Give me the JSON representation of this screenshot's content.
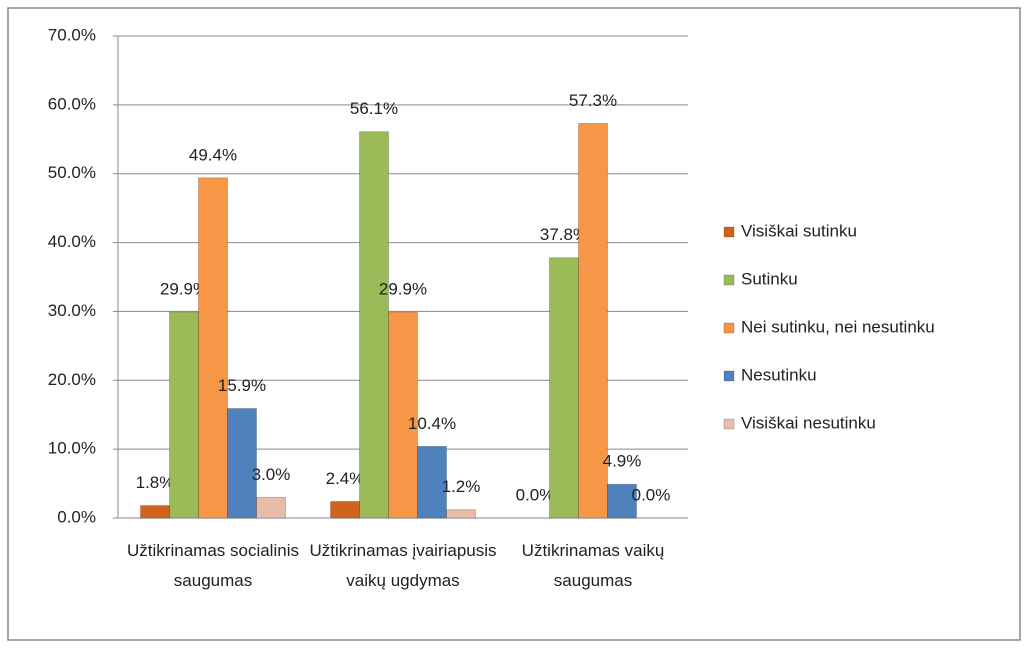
{
  "chart_data": {
    "type": "bar",
    "categories": [
      "Užtikrinamas socialinis saugumas",
      "Užtikrinamas įvairiapusis vaikų ugdymas",
      "Užtikrinamas vaikų saugumas"
    ],
    "series": [
      {
        "name": "Visiškai sutinku",
        "color": "#d0641f",
        "values": [
          1.8,
          2.4,
          0.0
        ],
        "value_labels": [
          "1.8%",
          "2.4%",
          "0.0%"
        ]
      },
      {
        "name": "Sutinku",
        "color": "#9bbb59",
        "values": [
          29.9,
          56.1,
          37.8
        ],
        "value_labels": [
          "29.9%",
          "56.1%",
          "37.8%"
        ]
      },
      {
        "name": "Nei sutinku, nei nesutinku",
        "color": "#f79646",
        "values": [
          49.4,
          29.9,
          57.3
        ],
        "value_labels": [
          "49.4%",
          "29.9%",
          "57.3%"
        ]
      },
      {
        "name": "Nesutinku",
        "color": "#4f81bd",
        "values": [
          15.9,
          10.4,
          4.9
        ],
        "value_labels": [
          "15.9%",
          "10.4%",
          "4.9%"
        ]
      },
      {
        "name": "Visiškai nesutinku",
        "color": "#e8bca8",
        "values": [
          3.0,
          1.2,
          0.0
        ],
        "value_labels": [
          "3.0%",
          "1.2%",
          "0.0%"
        ]
      }
    ],
    "ylim": [
      0,
      70
    ],
    "yticks": [
      {
        "value": 0,
        "label": "0.0%"
      },
      {
        "value": 10,
        "label": "10.0%"
      },
      {
        "value": 20,
        "label": "20.0%"
      },
      {
        "value": 30,
        "label": "30.0%"
      },
      {
        "value": 40,
        "label": "40.0%"
      },
      {
        "value": 50,
        "label": "50.0%"
      },
      {
        "value": 60,
        "label": "60.0%"
      },
      {
        "value": 70,
        "label": "70.0%"
      }
    ],
    "grid": true,
    "legend": "right"
  }
}
